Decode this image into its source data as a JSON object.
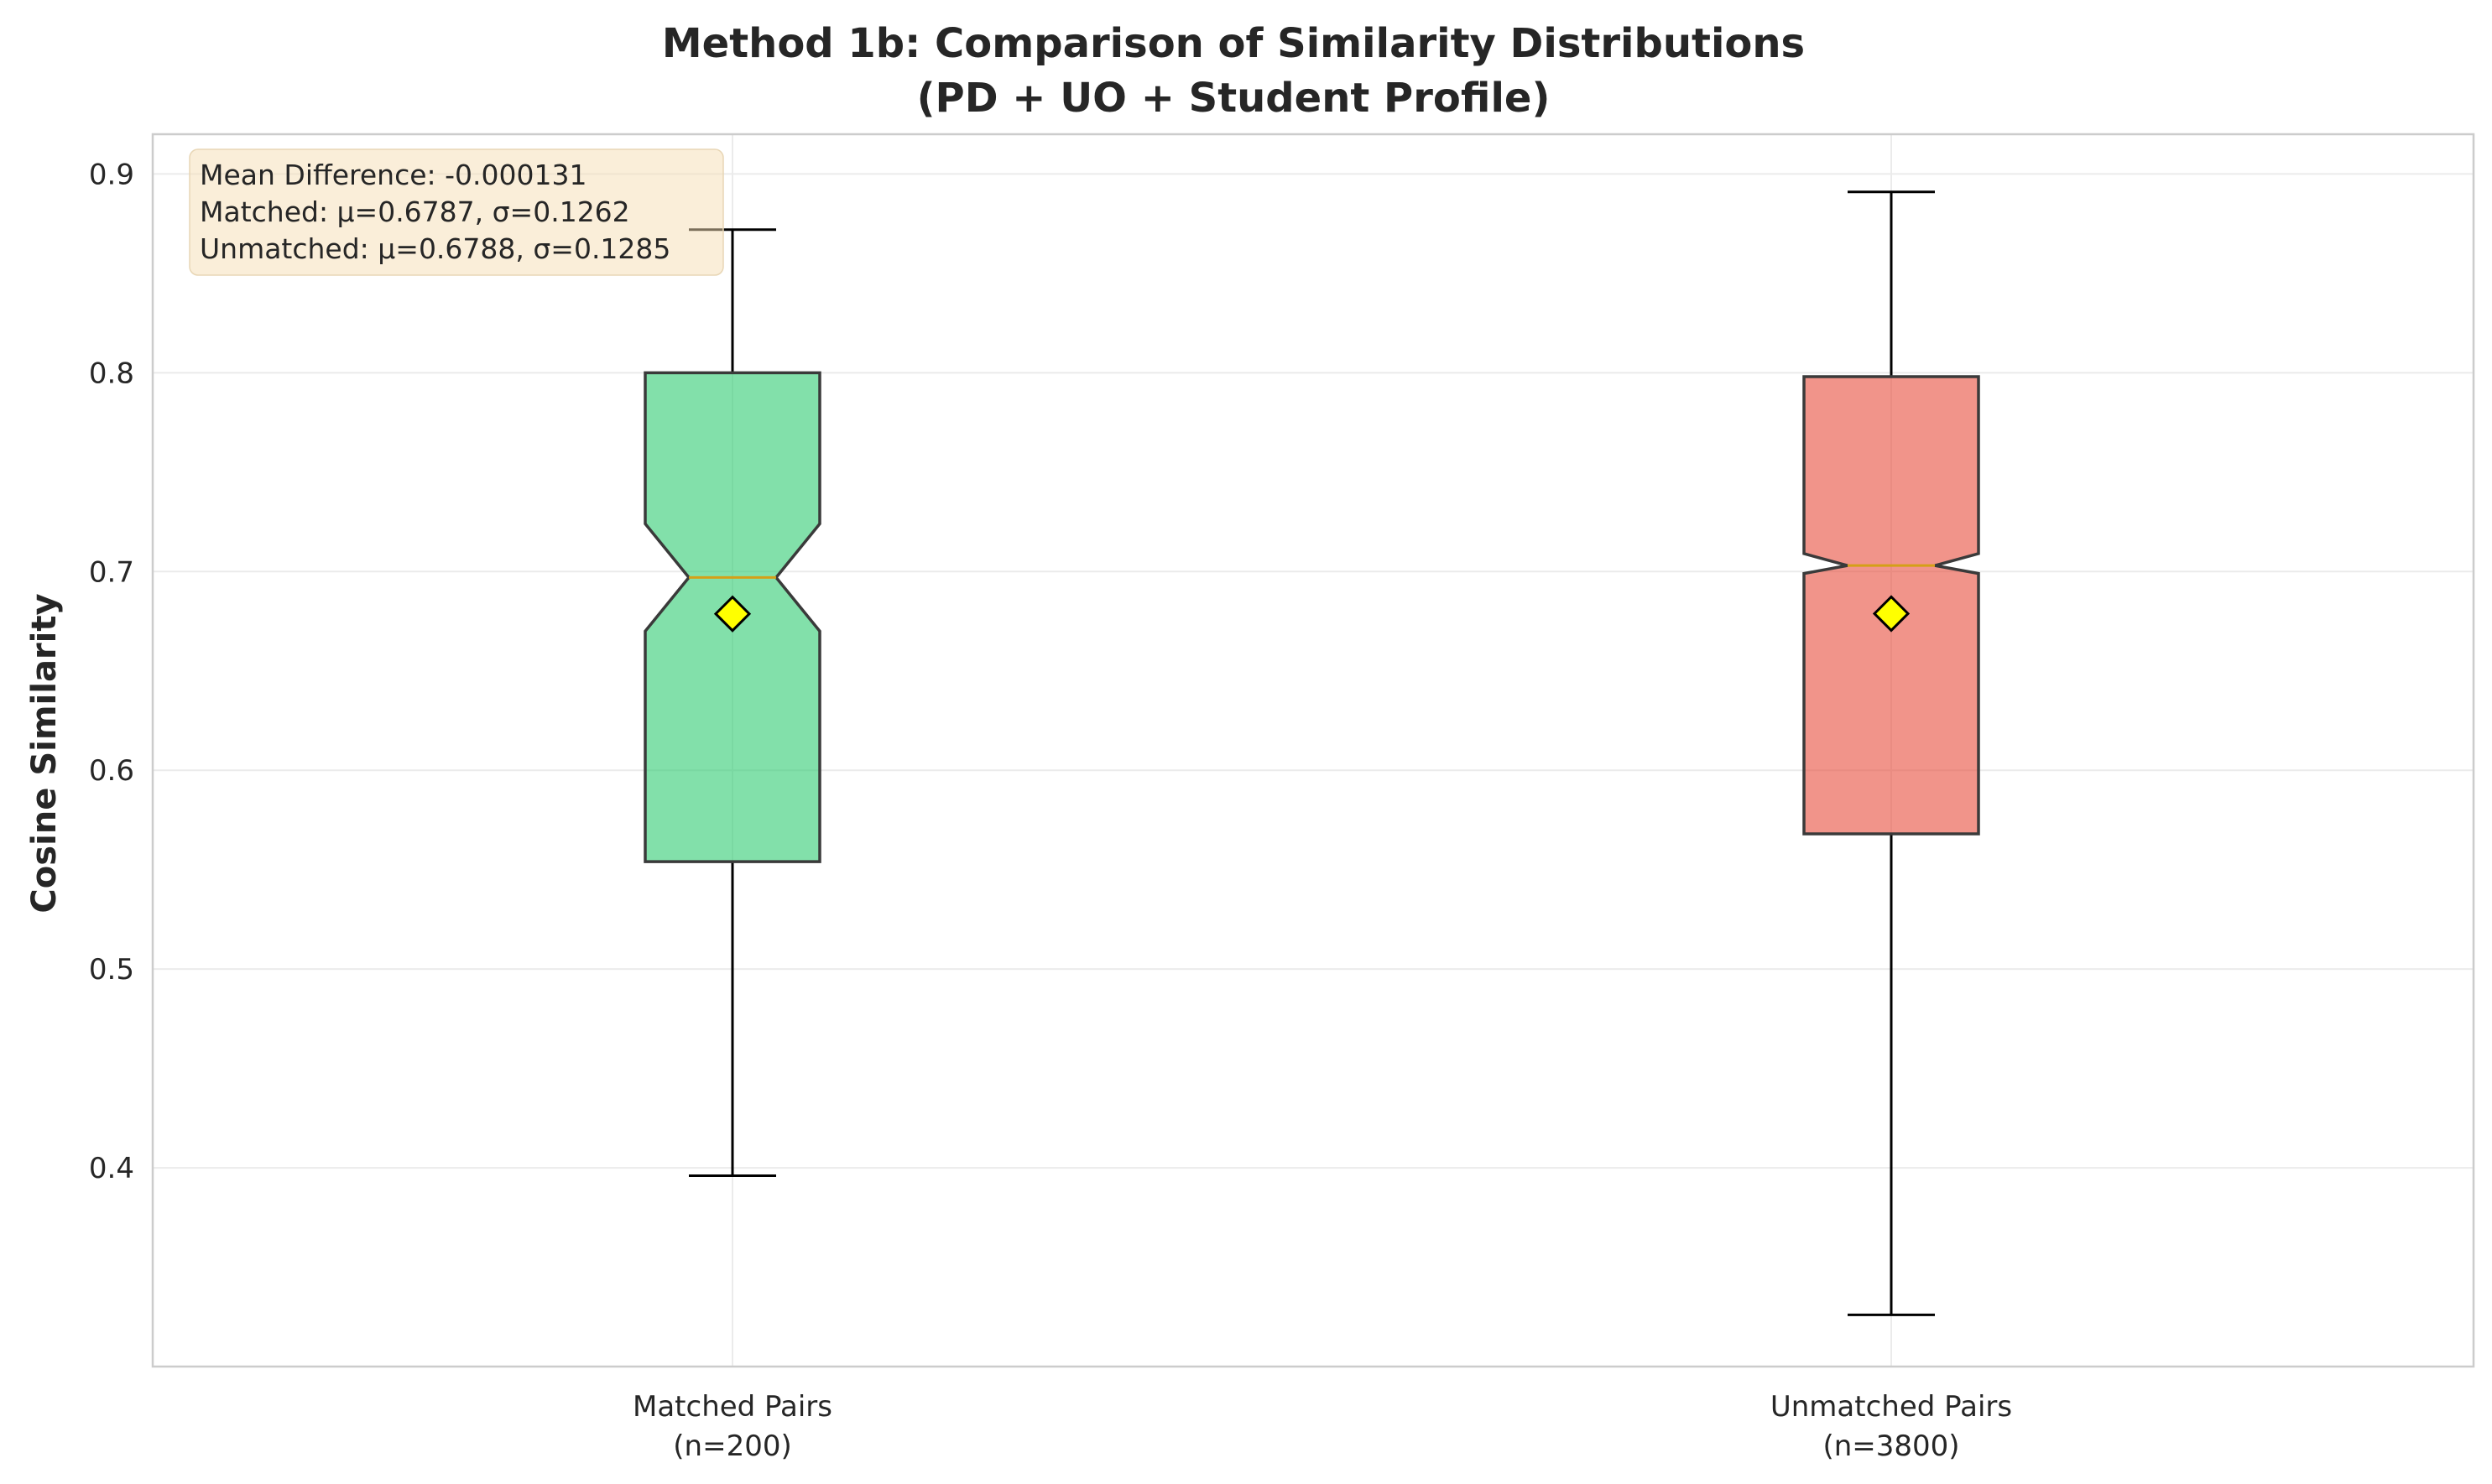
{
  "chart_data": {
    "type": "box",
    "title_line1": "Method 1b: Comparison of Similarity Distributions",
    "title_line2": "(PD + UO + Student Profile)",
    "xlabel": "",
    "ylabel": "Cosine Similarity",
    "ylim": [
      0.3,
      0.92
    ],
    "yticks": [
      0.4,
      0.5,
      0.6,
      0.7,
      0.8,
      0.9
    ],
    "ytick_labels": [
      "0.4",
      "0.5",
      "0.6",
      "0.7",
      "0.8",
      "0.9"
    ],
    "grid": true,
    "notched": true,
    "annotation": {
      "lines": [
        "Mean Difference: -0.000131",
        "Matched: μ=0.6787, σ=0.1262",
        "Unmatched: μ=0.6788, σ=0.1285"
      ],
      "placement": "top-left"
    },
    "series": [
      {
        "label_line1": "Matched Pairs",
        "label_line2": "(n=200)",
        "color": "#2ecc71",
        "whisker_low": 0.396,
        "q1": 0.554,
        "median": 0.697,
        "q3": 0.8,
        "whisker_high": 0.872,
        "notch_low": 0.67,
        "notch_high": 0.724,
        "mean": 0.6787
      },
      {
        "label_line1": "Unmatched Pairs",
        "label_line2": "(n=3800)",
        "color": "#e74c3c",
        "whisker_low": 0.326,
        "q1": 0.568,
        "median": 0.703,
        "q3": 0.798,
        "whisker_high": 0.891,
        "notch_low": 0.699,
        "notch_high": 0.709,
        "mean": 0.6788
      }
    ],
    "mean_marker_color": "#ffff00",
    "median_color": "#d4a017"
  }
}
